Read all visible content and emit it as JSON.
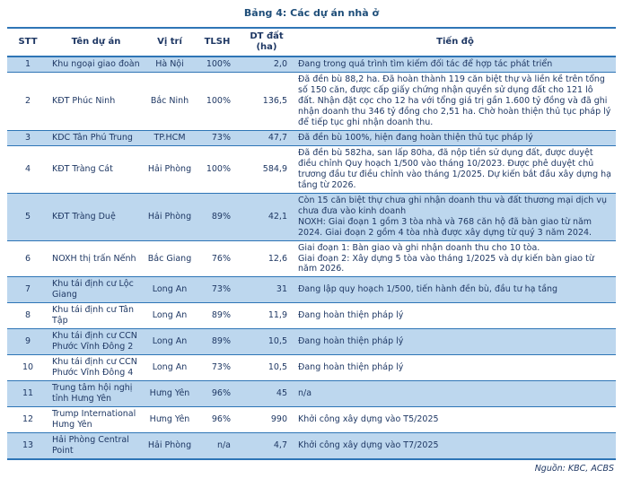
{
  "title": "Bảng 4: Các dự án nhà ở",
  "source_note": "Nguồn: KBC, ACBS",
  "colors": {
    "text": "#1F3864",
    "title": "#1F4E79",
    "row_shaded": "#BDD7EE",
    "border": "#2E75B6"
  },
  "table": {
    "headers": [
      "STT",
      "Tên dự án",
      "Vị trí",
      "TLSH",
      "DT đất (ha)",
      "Tiến độ"
    ],
    "rows": [
      {
        "stt": "1",
        "name": "Khu ngoại giao đoàn",
        "location": "Hà Nội",
        "tlsh": "100%",
        "area": "2,0",
        "progress": "Đang trong quá trình tìm kiếm đối tác để hợp tác phát triển"
      },
      {
        "stt": "2",
        "name": "KĐT Phúc Ninh",
        "location": "Bắc Ninh",
        "tlsh": "100%",
        "area": "136,5",
        "progress": "Đã đền bù 88,2 ha. Đã hoàn thành 119 căn biệt thự và liền kề trên tổng số 150 căn, được cấp giấy chứng nhận quyền sử dụng đất cho 121 lô đất. Nhận đặt cọc cho 12 ha với tổng giá trị gần 1.600 tỷ đồng và đã ghi nhận doanh thu 346 tỷ đồng cho 2,51 ha. Chờ hoàn thiện thủ tục pháp lý để tiếp tục ghi nhận doanh thu."
      },
      {
        "stt": "3",
        "name": "KDC Tân Phú Trung",
        "location": "TP.HCM",
        "tlsh": "73%",
        "area": "47,7",
        "progress": "Đã đền bù 100%, hiện đang hoàn thiện thủ tục pháp lý"
      },
      {
        "stt": "4",
        "name": "KĐT Tràng Cát",
        "location": "Hải Phòng",
        "tlsh": "100%",
        "area": "584,9",
        "progress": "Đã đền bù 582ha, san lấp 80ha, đã nộp tiền sử dụng đất, được duyệt điều chỉnh Quy hoạch 1/500 vào tháng 10/2023. Được phê duyệt chủ trương đầu tư điều chỉnh vào tháng 1/2025. Dự kiến bắt đầu xây dựng hạ tầng từ 2026."
      },
      {
        "stt": "5",
        "name": "KĐT Tràng Duệ",
        "location": "Hải Phòng",
        "tlsh": "89%",
        "area": "42,1",
        "progress": "Còn 15 căn biệt thự chưa ghi nhận doanh thu và đất thương mại dịch vụ chưa đưa vào kinh doanh\nNOXH: Giai đoạn 1 gồm 3 tòa nhà và 768 căn hộ đã bàn giao từ năm 2024. Giai đoạn 2 gồm 4 tòa nhà được xây dựng từ quý 3 năm 2024."
      },
      {
        "stt": "6",
        "name": "NOXH thị trấn Nếnh",
        "location": "Bắc Giang",
        "tlsh": "76%",
        "area": "12,6",
        "progress": "Giai đoạn 1: Bàn giao và ghi nhận doanh thu cho 10 tòa.\nGiai đoạn 2: Xây dựng 5 tòa vào tháng 1/2025 và dự kiến bàn giao từ năm 2026."
      },
      {
        "stt": "7",
        "name": "Khu tái định cư Lộc Giang",
        "location": "Long An",
        "tlsh": "73%",
        "area": "31",
        "progress": "Đang lập quy hoạch 1/500, tiến hành đền bù, đầu tư hạ tầng"
      },
      {
        "stt": "8",
        "name": "Khu tái định cư Tân Tập",
        "location": "Long An",
        "tlsh": "89%",
        "area": "11,9",
        "progress": "Đang hoàn thiện pháp lý"
      },
      {
        "stt": "9",
        "name": "Khu tái định cư CCN Phước Vĩnh Đông 2",
        "location": "Long An",
        "tlsh": "89%",
        "area": "10,5",
        "progress": "Đang hoàn thiện pháp lý"
      },
      {
        "stt": "10",
        "name": "Khu tái định cư CCN Phước Vĩnh Đông 4",
        "location": "Long An",
        "tlsh": "73%",
        "area": "10,5",
        "progress": "Đang hoàn thiện pháp lý"
      },
      {
        "stt": "11",
        "name": "Trung tâm hội nghị tỉnh Hưng Yên",
        "location": "Hưng Yên",
        "tlsh": "96%",
        "area": "45",
        "progress": "n/a"
      },
      {
        "stt": "12",
        "name": "Trump International Hưng Yên",
        "location": "Hưng Yên",
        "tlsh": "96%",
        "area": "990",
        "progress": "Khởi công xây dựng vào T5/2025"
      },
      {
        "stt": "13",
        "name": "Hải Phòng Central Point",
        "location": "Hải Phòng",
        "tlsh": "n/a",
        "area": "4,7",
        "progress": "Khởi công xây dựng vào T7/2025"
      }
    ]
  }
}
